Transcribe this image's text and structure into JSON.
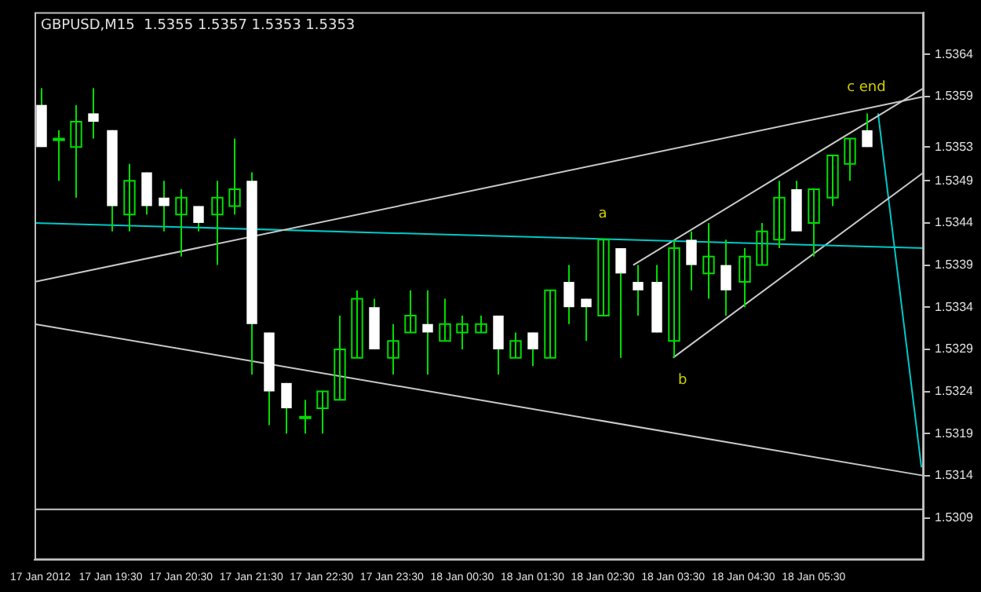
{
  "chart_data": {
    "type": "candlestick",
    "title": "GBPUSD,M15  1.5355 1.5357 1.5353 1.5353",
    "color": "#00dd00",
    "x": [
      "2012-01-17T18:30",
      "2012-01-17T18:45",
      "2012-01-17T19:00",
      "2012-01-17T19:15",
      "2012-01-17T19:30",
      "2012-01-17T19:45",
      "2012-01-17T20:00",
      "2012-01-17T20:15",
      "2012-01-17T20:30",
      "2012-01-17T20:45",
      "2012-01-17T21:00",
      "2012-01-17T21:15",
      "2012-01-17T21:30",
      "2012-01-17T21:45",
      "2012-01-17T22:00",
      "2012-01-17T22:15",
      "2012-01-17T22:30",
      "2012-01-17T22:45",
      "2012-01-17T23:00",
      "2012-01-17T23:15",
      "2012-01-17T23:30",
      "2012-01-17T23:45",
      "2012-01-18T00:00",
      "2012-01-18T00:15",
      "2012-01-18T00:30",
      "2012-01-18T00:45",
      "2012-01-18T01:00",
      "2012-01-18T01:15",
      "2012-01-18T01:30",
      "2012-01-18T01:45",
      "2012-01-18T02:00",
      "2012-01-18T02:15",
      "2012-01-18T02:30",
      "2012-01-18T02:45",
      "2012-01-18T03:00",
      "2012-01-18T03:15",
      "2012-01-18T03:30",
      "2012-01-18T03:45",
      "2012-01-18T04:00",
      "2012-01-18T04:15",
      "2012-01-18T04:30",
      "2012-01-18T04:45",
      "2012-01-18T05:00",
      "2012-01-18T05:15",
      "2012-01-18T05:30",
      "2012-01-18T05:45",
      "2012-01-18T06:00",
      "2012-01-18T06:15"
    ],
    "ohlc": [
      [
        1.5358,
        1.536,
        1.5353,
        1.5353
      ],
      [
        1.5354,
        1.5355,
        1.5349,
        1.5354
      ],
      [
        1.5353,
        1.5358,
        1.5347,
        1.5356
      ],
      [
        1.5357,
        1.536,
        1.5354,
        1.5356
      ],
      [
        1.5355,
        1.5355,
        1.5343,
        1.5346
      ],
      [
        1.5345,
        1.5351,
        1.5343,
        1.5349
      ],
      [
        1.535,
        1.535,
        1.5345,
        1.5346
      ],
      [
        1.5347,
        1.5349,
        1.5343,
        1.5346
      ],
      [
        1.5345,
        1.5348,
        1.534,
        1.5347
      ],
      [
        1.5346,
        1.5346,
        1.5343,
        1.5344
      ],
      [
        1.5345,
        1.5349,
        1.5339,
        1.5347
      ],
      [
        1.5346,
        1.5354,
        1.5345,
        1.5348
      ],
      [
        1.5349,
        1.535,
        1.5326,
        1.5332
      ],
      [
        1.5331,
        1.5331,
        1.532,
        1.5324
      ],
      [
        1.5325,
        1.5325,
        1.5319,
        1.5322
      ],
      [
        1.5321,
        1.5323,
        1.5319,
        1.5321
      ],
      [
        1.5322,
        1.5324,
        1.5319,
        1.5324
      ],
      [
        1.5323,
        1.5333,
        1.5323,
        1.5329
      ],
      [
        1.5328,
        1.5336,
        1.5328,
        1.5335
      ],
      [
        1.5334,
        1.5335,
        1.5329,
        1.5329
      ],
      [
        1.5328,
        1.5332,
        1.5326,
        1.533
      ],
      [
        1.5331,
        1.5336,
        1.5331,
        1.5333
      ],
      [
        1.5332,
        1.5336,
        1.5326,
        1.5331
      ],
      [
        1.533,
        1.5335,
        1.533,
        1.5332
      ],
      [
        1.5331,
        1.5333,
        1.5329,
        1.5332
      ],
      [
        1.5331,
        1.5333,
        1.5331,
        1.5332
      ],
      [
        1.5333,
        1.5333,
        1.5326,
        1.5329
      ],
      [
        1.5328,
        1.5331,
        1.5328,
        1.533
      ],
      [
        1.5331,
        1.5331,
        1.5327,
        1.5329
      ],
      [
        1.5328,
        1.5336,
        1.5328,
        1.5336
      ],
      [
        1.5337,
        1.5339,
        1.5332,
        1.5334
      ],
      [
        1.5335,
        1.5335,
        1.533,
        1.5334
      ],
      [
        1.5333,
        1.5342,
        1.5333,
        1.5342
      ],
      [
        1.5341,
        1.5341,
        1.5328,
        1.5338
      ],
      [
        1.5337,
        1.5339,
        1.5333,
        1.5336
      ],
      [
        1.5337,
        1.5339,
        1.5331,
        1.5331
      ],
      [
        1.533,
        1.5342,
        1.5328,
        1.5341
      ],
      [
        1.5342,
        1.5343,
        1.5336,
        1.5339
      ],
      [
        1.5338,
        1.5344,
        1.5335,
        1.534
      ],
      [
        1.5339,
        1.5342,
        1.5333,
        1.5336
      ],
      [
        1.5337,
        1.5341,
        1.5334,
        1.534
      ],
      [
        1.5339,
        1.5344,
        1.5339,
        1.5343
      ],
      [
        1.5342,
        1.5349,
        1.5341,
        1.5347
      ],
      [
        1.5348,
        1.5349,
        1.5343,
        1.5343
      ],
      [
        1.5344,
        1.5348,
        1.534,
        1.5348
      ],
      [
        1.5347,
        1.5352,
        1.5346,
        1.5352
      ],
      [
        1.5351,
        1.5354,
        1.5349,
        1.5354
      ],
      [
        1.5355,
        1.5357,
        1.5353,
        1.5353
      ]
    ],
    "series": [
      {
        "type": "line",
        "color": "#c8c8c8",
        "x": [
          "2012-01-17T18:25",
          "2012-01-18T07:04"
        ],
        "values": [
          1.5337,
          1.5359
        ]
      },
      {
        "type": "line",
        "color": "#c8c8c8",
        "x": [
          "2012-01-17T18:25",
          "2012-01-18T07:04"
        ],
        "values": [
          1.5332,
          1.5314
        ]
      },
      {
        "type": "line",
        "color": "#00c8c8",
        "x": [
          "2012-01-17T18:25",
          "2012-01-18T07:04"
        ],
        "values": [
          1.5344,
          1.5341
        ]
      },
      {
        "type": "line",
        "color": "#c8c8c8",
        "x": [
          "2012-01-18T02:56",
          "2012-01-18T07:04"
        ],
        "values": [
          1.5339,
          1.536
        ]
      },
      {
        "type": "line",
        "color": "#c8c8c8",
        "x": [
          "2012-01-18T03:30",
          "2012-01-18T07:04"
        ],
        "values": [
          1.5328,
          1.535
        ]
      },
      {
        "type": "line",
        "color": "#00c8c8",
        "x": [
          "2012-01-18T06:25",
          "2012-01-18T07:02"
        ],
        "values": [
          1.5357,
          1.5315
        ]
      }
    ],
    "ref_lines": [
      {
        "axis": "y",
        "value": 1.531,
        "color": "#c8c8c8"
      }
    ],
    "annotations": [
      {
        "text": "a",
        "x": "2012-01-18T02:30",
        "y": 1.5342
      },
      {
        "text": "b",
        "x": "2012-01-18T03:30",
        "y": 1.5328
      },
      {
        "text": "c end",
        "x": "2012-01-18T06:15",
        "y": 1.5357
      }
    ],
    "colors": [
      "#ffffff",
      "#00dd00",
      "#00dd00",
      "#ffffff",
      "#ffffff",
      "#00dd00",
      "#ffffff",
      "#ffffff",
      "#00dd00",
      "#ffffff",
      "#00dd00",
      "#00dd00",
      "#ffffff",
      "#ffffff",
      "#ffffff",
      "#00dd00",
      "#00dd00",
      "#00dd00",
      "#00dd00",
      "#ffffff",
      "#00dd00",
      "#00dd00",
      "#ffffff",
      "#00dd00",
      "#00dd00",
      "#00dd00",
      "#ffffff",
      "#00dd00",
      "#ffffff",
      "#00dd00",
      "#ffffff",
      "#ffffff",
      "#00dd00",
      "#ffffff",
      "#ffffff",
      "#ffffff",
      "#00dd00",
      "#ffffff",
      "#00dd00",
      "#ffffff",
      "#00dd00",
      "#00dd00",
      "#00dd00",
      "#ffffff",
      "#00dd00",
      "#00dd00",
      "#00dd00",
      "#ffffff"
    ],
    "xlim": [
      "2012-01-17T18:25",
      "2012-01-18T07:04"
    ],
    "xticks": [
      {
        "value": "2012-01-17T18:30",
        "label": "17 Jan 2012"
      },
      {
        "value": "2012-01-17T19:30",
        "label": "17 Jan 19:30"
      },
      {
        "value": "2012-01-17T20:30",
        "label": "17 Jan 20:30"
      },
      {
        "value": "2012-01-17T21:30",
        "label": "17 Jan 21:30"
      },
      {
        "value": "2012-01-17T22:30",
        "label": "17 Jan 22:30"
      },
      {
        "value": "2012-01-17T23:30",
        "label": "17 Jan 23:30"
      },
      {
        "value": "2012-01-18T00:30",
        "label": "18 Jan 00:30"
      },
      {
        "value": "2012-01-18T01:30",
        "label": "18 Jan 01:30"
      },
      {
        "value": "2012-01-18T02:30",
        "label": "18 Jan 02:30"
      },
      {
        "value": "2012-01-18T03:30",
        "label": "18 Jan 03:30"
      },
      {
        "value": "2012-01-18T04:30",
        "label": "18 Jan 04:30"
      },
      {
        "value": "2012-01-18T05:30",
        "label": "18 Jan 05:30"
      }
    ],
    "ylim": [
      1.5304,
      1.5369
    ],
    "yticks": [
      1.5309,
      1.5314,
      1.5319,
      1.5324,
      1.5329,
      1.5334,
      1.5339,
      1.5344,
      1.5349,
      1.5353,
      1.5359,
      1.5364
    ],
    "grid": false,
    "legend": false
  }
}
